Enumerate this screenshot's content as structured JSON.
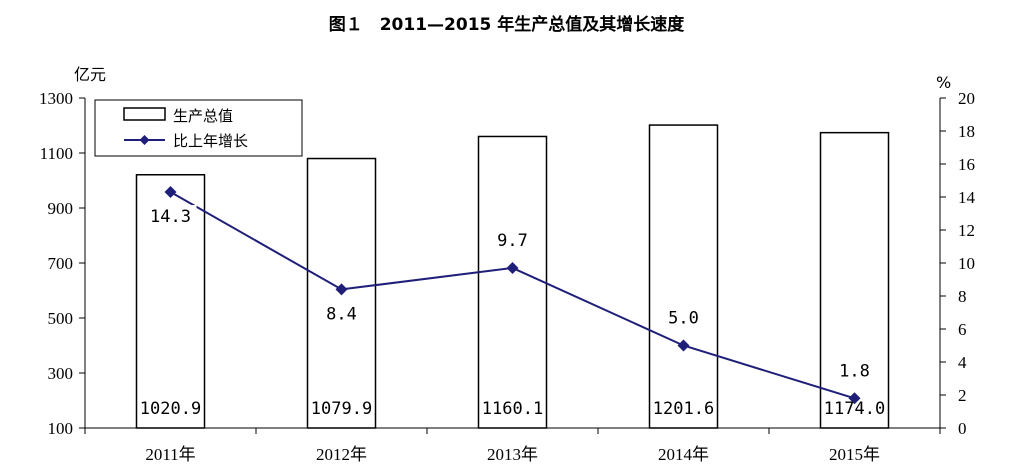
{
  "chart_data": {
    "type": "bar+line",
    "title": "图１　2011—2015 年生产总值及其增长速度",
    "categories": [
      "2011年",
      "2012年",
      "2013年",
      "2014年",
      "2015年"
    ],
    "series": [
      {
        "name": "生产总值",
        "type": "bar",
        "axis": "left",
        "values": [
          1020.9,
          1079.9,
          1160.1,
          1201.6,
          1174.0
        ],
        "labels": [
          "1020.9",
          "1079.9",
          "1160.1",
          "1201.6",
          "1174.0"
        ],
        "color": "#ffffff",
        "stroke": "#000000"
      },
      {
        "name": "比上年增长",
        "type": "line",
        "axis": "right",
        "values": [
          14.3,
          8.4,
          9.7,
          5.0,
          1.8
        ],
        "labels": [
          "14.3",
          "8.4",
          "9.7",
          "5.0",
          "1.8"
        ],
        "color": "#1f1f7a"
      }
    ],
    "y_left": {
      "unit": "亿元",
      "min": 100,
      "max": 1300,
      "ticks": [
        "100",
        "300",
        "500",
        "700",
        "900",
        "1100",
        "1300"
      ]
    },
    "y_right": {
      "unit": "%",
      "min": 0,
      "max": 20,
      "ticks": [
        "0",
        "2",
        "4",
        "6",
        "8",
        "10",
        "12",
        "14",
        "16",
        "18",
        "20"
      ]
    },
    "grid": false,
    "legend_position": "top-left"
  }
}
